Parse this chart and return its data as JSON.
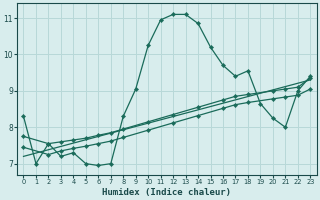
{
  "xlabel": "Humidex (Indice chaleur)",
  "bg_color": "#d8eded",
  "grid_color": "#b8d8d8",
  "line_color": "#1a6b5a",
  "xlim": [
    -0.5,
    23.5
  ],
  "ylim": [
    6.7,
    11.4
  ],
  "xticks": [
    0,
    1,
    2,
    3,
    4,
    5,
    6,
    7,
    8,
    9,
    10,
    11,
    12,
    13,
    14,
    15,
    16,
    17,
    18,
    19,
    20,
    21,
    22,
    23
  ],
  "yticks": [
    7,
    8,
    9,
    10,
    11
  ],
  "curve1_x": [
    0,
    1,
    2,
    3,
    4,
    5,
    6,
    7,
    8,
    9,
    10,
    11,
    12,
    13,
    14,
    15,
    16,
    17,
    18,
    19,
    20,
    21,
    22,
    23
  ],
  "curve1_y": [
    8.3,
    7.0,
    7.55,
    7.2,
    7.3,
    7.0,
    6.95,
    7.0,
    8.3,
    9.05,
    10.25,
    10.95,
    11.1,
    11.1,
    10.85,
    10.2,
    9.7,
    9.4,
    9.55,
    8.65,
    8.25,
    8.0,
    9.0,
    9.4
  ],
  "curve2_x": [
    0,
    2,
    3,
    4,
    5,
    6,
    7,
    8,
    10,
    12,
    14,
    16,
    17,
    18,
    20,
    21,
    22,
    23
  ],
  "curve2_y": [
    7.75,
    7.55,
    7.6,
    7.65,
    7.7,
    7.78,
    7.85,
    7.95,
    8.15,
    8.35,
    8.55,
    8.75,
    8.85,
    8.9,
    9.0,
    9.05,
    9.1,
    9.35
  ],
  "curve3_x": [
    0,
    2,
    3,
    4,
    5,
    6,
    7,
    8,
    10,
    12,
    14,
    16,
    17,
    18,
    20,
    21,
    22,
    23
  ],
  "curve3_y": [
    7.45,
    7.25,
    7.35,
    7.42,
    7.48,
    7.55,
    7.62,
    7.72,
    7.92,
    8.12,
    8.32,
    8.52,
    8.62,
    8.68,
    8.78,
    8.83,
    8.88,
    9.05
  ],
  "line_x": [
    0,
    23
  ],
  "line_y": [
    7.2,
    9.3
  ],
  "marker": "D",
  "markersize": 2.2,
  "linewidth": 0.9
}
